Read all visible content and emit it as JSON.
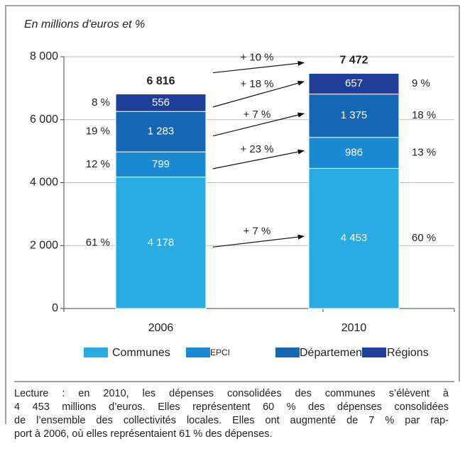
{
  "chart_data": {
    "type": "stacked-bar",
    "subtitle": "En millions d'euros et %",
    "categories": [
      "2006",
      "2010"
    ],
    "series": [
      {
        "name": "Communes",
        "color": "#29abe2",
        "values": [
          4178,
          4453
        ],
        "value_labels": [
          "4 178",
          "4 453"
        ],
        "share_labels": [
          "61 %",
          "60 %"
        ],
        "growth_label": "+ 7 %"
      },
      {
        "name": "EPCI",
        "color": "#1a8bd2",
        "values": [
          799,
          986
        ],
        "value_labels": [
          "799",
          "986"
        ],
        "share_labels": [
          "12 %",
          "13 %"
        ],
        "growth_label": "+ 23 %"
      },
      {
        "name": "Départements",
        "color": "#1667b3",
        "values": [
          1283,
          1375
        ],
        "value_labels": [
          "1 283",
          "1 375"
        ],
        "share_labels": [
          "19 %",
          "18 %"
        ],
        "growth_label": "+ 7 %"
      },
      {
        "name": "Régions",
        "color": "#1f3f9a",
        "values": [
          556,
          657
        ],
        "value_labels": [
          "556",
          "657"
        ],
        "share_labels": [
          "8 %",
          "9 %"
        ],
        "growth_label": "+ 18 %"
      }
    ],
    "totals": [
      6816,
      7472
    ],
    "total_labels": [
      "6 816",
      "7 472"
    ],
    "total_growth_label": "+ 10 %",
    "ylim": [
      0,
      8000
    ],
    "yticks": [
      0,
      {
        "value": 2000,
        "label": "2 000"
      },
      {
        "value": 4000,
        "label": "4 000"
      },
      {
        "value": 6000,
        "label": "6 000"
      },
      {
        "value": 8000,
        "label": "8 000"
      }
    ],
    "grid": true,
    "note_lines": [
      "Lecture : en 2010, les dépenses consolidées des communes s’élèvent à",
      "4 453 millions d’euros. Elles représentent 60 % des dépenses consolidées",
      "de l’ensemble des collectivités locales. Elles ont augmenté de 7 % par rap-",
      "port à 2006, où elles représentaient 61 % des dépenses."
    ]
  }
}
